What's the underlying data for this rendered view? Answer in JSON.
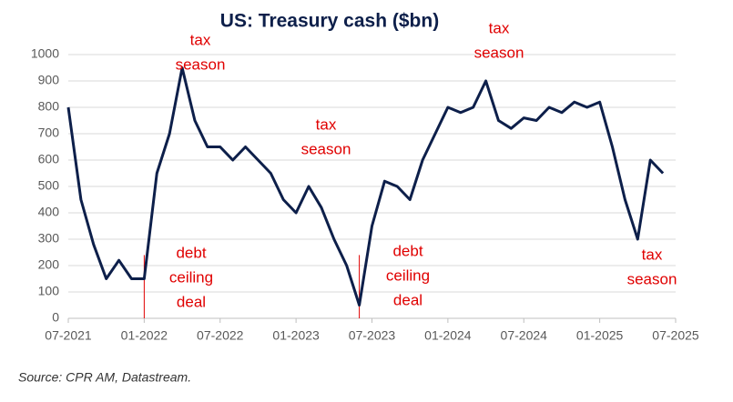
{
  "chart_data": {
    "type": "line",
    "title": "US: Treasury cash ($bn)",
    "x": [
      "2021-07",
      "2021-08",
      "2021-09",
      "2021-10",
      "2021-11",
      "2021-12",
      "2022-01",
      "2022-02",
      "2022-03",
      "2022-04",
      "2022-05",
      "2022-06",
      "2022-07",
      "2022-08",
      "2022-09",
      "2022-10",
      "2022-11",
      "2022-12",
      "2023-01",
      "2023-02",
      "2023-03",
      "2023-04",
      "2023-05",
      "2023-06",
      "2023-07",
      "2023-08",
      "2023-09",
      "2023-10",
      "2023-11",
      "2023-12",
      "2024-01",
      "2024-02",
      "2024-03",
      "2024-04",
      "2024-05",
      "2024-06",
      "2024-07",
      "2024-08",
      "2024-09",
      "2024-10",
      "2024-11",
      "2024-12",
      "2025-01",
      "2025-02",
      "2025-03",
      "2025-04",
      "2025-05",
      "2025-06"
    ],
    "series": [
      {
        "color": "#0d1f4a",
        "values": [
          800,
          450,
          280,
          150,
          220,
          150,
          150,
          550,
          700,
          950,
          750,
          650,
          650,
          600,
          650,
          600,
          550,
          450,
          400,
          500,
          420,
          300,
          200,
          50,
          350,
          520,
          500,
          450,
          600,
          700,
          800,
          780,
          800,
          900,
          750,
          720,
          760,
          750,
          800,
          780,
          820,
          800,
          820,
          650,
          450,
          300,
          600,
          550
        ]
      }
    ],
    "ylim": [
      0,
      1000
    ],
    "yticks": [
      0,
      100,
      200,
      300,
      400,
      500,
      600,
      700,
      800,
      900,
      1000
    ],
    "xlim": [
      "2021-07",
      "2025-07"
    ],
    "xticks": [
      {
        "value": "2021-07",
        "label": "07-2021"
      },
      {
        "value": "2022-01",
        "label": "01-2022"
      },
      {
        "value": "2022-07",
        "label": "07-2022"
      },
      {
        "value": "2023-01",
        "label": "01-2023"
      },
      {
        "value": "2023-07",
        "label": "07-2023"
      },
      {
        "value": "2024-01",
        "label": "01-2024"
      },
      {
        "value": "2024-07",
        "label": "07-2024"
      },
      {
        "value": "2025-01",
        "label": "01-2025"
      },
      {
        "value": "2025-07",
        "label": "07-2025"
      }
    ],
    "grid": true,
    "annotations": [
      {
        "lines": [
          "tax",
          "season"
        ]
      },
      {
        "lines": [
          "tax",
          "season"
        ]
      },
      {
        "lines": [
          "tax",
          "season"
        ]
      },
      {
        "lines": [
          "tax",
          "season"
        ]
      },
      {
        "lines": [
          "debt",
          "ceiling",
          "deal"
        ]
      },
      {
        "lines": [
          "debt",
          "ceiling",
          "deal"
        ]
      }
    ],
    "source": "Source: CPR AM, Datastream."
  }
}
